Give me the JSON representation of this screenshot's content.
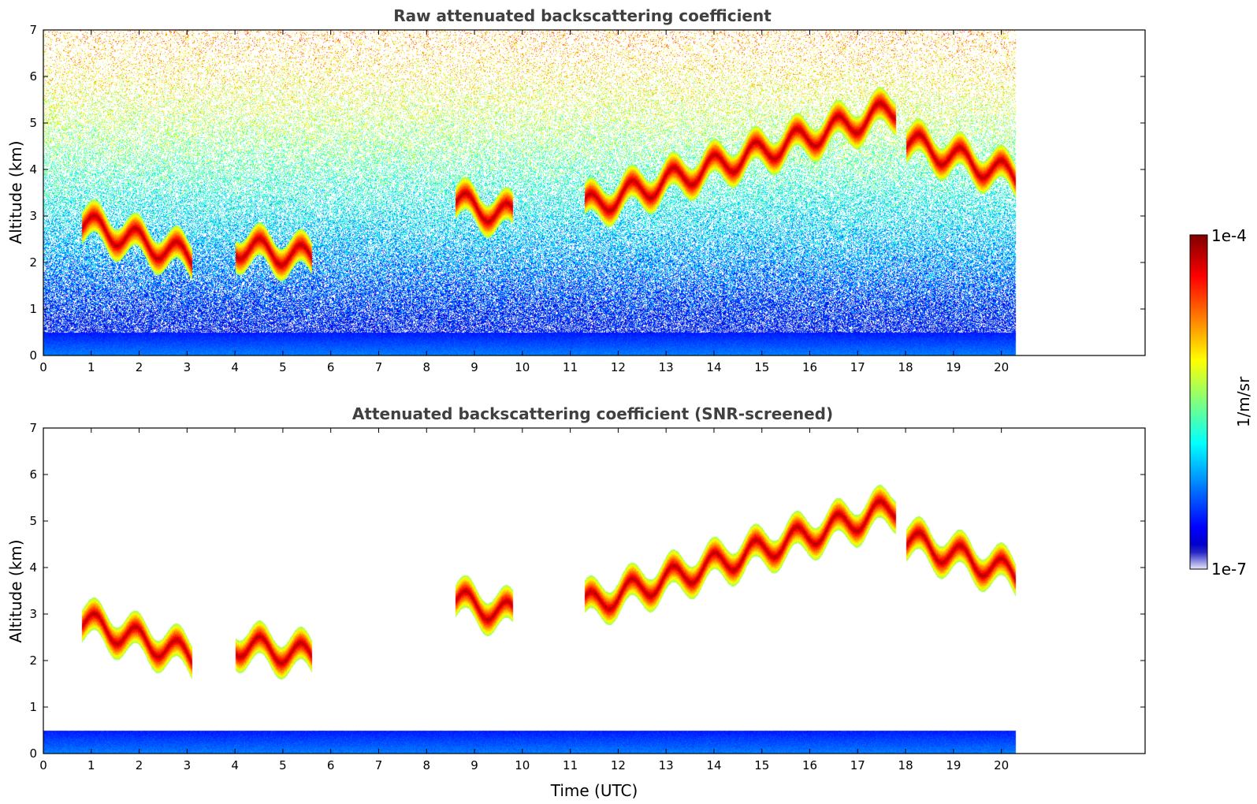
{
  "chart_data": [
    {
      "type": "heatmap",
      "title": "Raw attenuated backscattering coefficient",
      "xlabel": "",
      "ylabel": "Altitude (km)",
      "xlim": [
        0,
        23
      ],
      "ylim": [
        0,
        7
      ],
      "data_end_time": 20.3,
      "x_ticks": [
        "0",
        "1",
        "2",
        "3",
        "4",
        "5",
        "6",
        "7",
        "8",
        "9",
        "10",
        "11",
        "12",
        "13",
        "14",
        "15",
        "16",
        "17",
        "18",
        "19",
        "20"
      ],
      "y_ticks": [
        "0",
        "1",
        "2",
        "3",
        "4",
        "5",
        "6",
        "7"
      ],
      "screened": false
    },
    {
      "type": "heatmap",
      "title": "Attenuated backscattering coefficient (SNR-screened)",
      "xlabel": "Time (UTC)",
      "ylabel": "Altitude (km)",
      "xlim": [
        0,
        23
      ],
      "ylim": [
        0,
        7
      ],
      "data_end_time": 20.3,
      "x_ticks": [
        "0",
        "1",
        "2",
        "3",
        "4",
        "5",
        "6",
        "7",
        "8",
        "9",
        "10",
        "11",
        "12",
        "13",
        "14",
        "15",
        "16",
        "17",
        "18",
        "19",
        "20"
      ],
      "y_ticks": [
        "0",
        "1",
        "2",
        "3",
        "4",
        "5",
        "6",
        "7"
      ],
      "screened": true
    }
  ],
  "colorbar": {
    "label": "1/m/sr",
    "min_label": "1e-7",
    "max_label": "1e-4",
    "scale": "log"
  },
  "features": [
    {
      "name": "boundary layer",
      "t0": 0,
      "t1": 20.3,
      "alt0": 0.0,
      "alt1": 0.5
    },
    {
      "name": "cloud layer 2.5 km",
      "t0": 0.8,
      "t1": 3.1,
      "alt_start": 2.85,
      "alt_end": 2.1
    },
    {
      "name": "cloud 5.5 UTC",
      "t0": 4.0,
      "t1": 5.6,
      "alt_start": 2.35,
      "alt_end": 2.1
    },
    {
      "name": "cirrus 4-5 km",
      "t0": 11.3,
      "t1": 17.8,
      "alt_start": 3.2,
      "alt_end": 5.3
    },
    {
      "name": "cloud 18-20 UTC",
      "t0": 18.0,
      "t1": 20.3,
      "alt_start": 4.6,
      "alt_end": 3.85
    },
    {
      "name": "cloud 9 UTC",
      "t0": 8.6,
      "t1": 9.8,
      "alt_start": 3.3,
      "alt_end": 3.0
    }
  ]
}
